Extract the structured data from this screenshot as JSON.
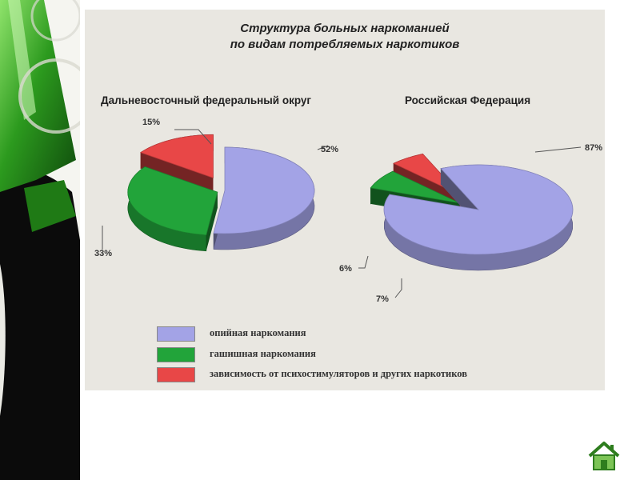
{
  "title_lines": [
    "Структура больных наркоманией",
    "по видам потребляемых наркотиков"
  ],
  "colors": {
    "opium": "#a3a3e6",
    "hashish": "#22a43a",
    "stimulants": "#e84747"
  },
  "chart_data": [
    {
      "type": "pie",
      "title": "Дальневосточный федеральный округ",
      "labels": [
        "опийная наркомания",
        "гашишная наркомания",
        "зависимость от психостимуляторов и других наркотиков"
      ],
      "values": [
        52,
        33,
        15
      ],
      "value_labels": [
        "52%",
        "33%",
        "15%"
      ],
      "exploded": true,
      "3d": true
    },
    {
      "type": "pie",
      "title": "Российская Федерация",
      "labels": [
        "опийная наркомания",
        "гашишная наркомания",
        "зависимость от психостимуляторов и других наркотиков"
      ],
      "values": [
        87,
        7,
        6
      ],
      "value_labels": [
        "87%",
        "7%",
        "6%"
      ],
      "exploded": true,
      "3d": true
    }
  ],
  "legend": {
    "position": "bottom",
    "items": [
      {
        "label": "опийная наркомания",
        "color": "#a3a3e6"
      },
      {
        "label": "гашишная наркомания",
        "color": "#22a43a"
      },
      {
        "label": "зависимость от психостимуляторов и других наркотиков",
        "color": "#e84747"
      }
    ]
  },
  "icons": {
    "nav": "home-icon",
    "decor": "bottle-icon"
  }
}
